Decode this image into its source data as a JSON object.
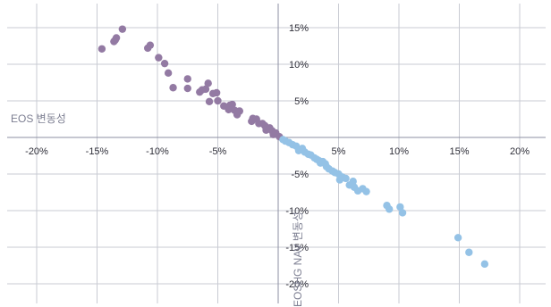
{
  "chart_data": {
    "type": "scatter",
    "xlabel": "EOS 변동성",
    "ylabel": "EOSHG NAV 변동성",
    "xlim": [
      -22,
      22
    ],
    "ylim": [
      -22,
      17.5
    ],
    "x_ticks": [
      -20,
      -15,
      -10,
      -5,
      5,
      10,
      15,
      20
    ],
    "x_tick_labels": [
      "-20%",
      "-15%",
      "-10%",
      "-5%",
      "5%",
      "10%",
      "15%",
      "20%"
    ],
    "y_ticks": [
      15,
      10,
      5,
      -5,
      -10,
      -15,
      -20
    ],
    "y_tick_labels": [
      "15%",
      "10%",
      "5%",
      "-5%",
      "-10%",
      "-15%",
      "-20%"
    ],
    "grid": true,
    "colors": {
      "negative": "#937aa3",
      "positive": "#94c2e6",
      "axis": "#8d8fa3",
      "grid": "#c9cbd3"
    },
    "series": [
      {
        "color": "negative",
        "points": [
          [
            -14.6,
            12.1
          ],
          [
            -13.6,
            13.1
          ],
          [
            -13.5,
            13.3
          ],
          [
            -13.4,
            13.6
          ],
          [
            -12.9,
            14.8
          ],
          [
            -10.8,
            12.2
          ],
          [
            -10.6,
            12.6
          ],
          [
            -9.9,
            10.9
          ],
          [
            -9.4,
            10.1
          ],
          [
            -9.1,
            8.8
          ],
          [
            -8.7,
            6.8
          ],
          [
            -7.5,
            8.0
          ],
          [
            -7.5,
            6.7
          ],
          [
            -6.5,
            6.2
          ],
          [
            -6.3,
            6.5
          ],
          [
            -6.0,
            6.6
          ],
          [
            -5.8,
            7.4
          ],
          [
            -5.7,
            4.9
          ],
          [
            -5.4,
            6.0
          ],
          [
            -5.1,
            6.1
          ],
          [
            -5.0,
            5.0
          ],
          [
            -4.5,
            4.3
          ],
          [
            -4.1,
            3.8
          ],
          [
            -4.0,
            4.4
          ],
          [
            -3.8,
            4.5
          ],
          [
            -3.6,
            3.7
          ],
          [
            -3.4,
            3.1
          ],
          [
            -3.2,
            3.6
          ],
          [
            -2.2,
            2.2
          ],
          [
            -2.1,
            2.6
          ],
          [
            -1.8,
            2.5
          ],
          [
            -1.6,
            1.9
          ],
          [
            -1.3,
            1.9
          ],
          [
            -1.1,
            1.6
          ],
          [
            -1.0,
            1.0
          ],
          [
            -0.7,
            1.3
          ],
          [
            -0.5,
            0.9
          ],
          [
            -0.4,
            0.4
          ],
          [
            -0.2,
            0.6
          ],
          [
            0.1,
            0.1
          ]
        ]
      },
      {
        "color": "positive",
        "points": [
          [
            0.4,
            -0.3
          ],
          [
            0.6,
            -0.5
          ],
          [
            0.9,
            -0.7
          ],
          [
            1.2,
            -1.0
          ],
          [
            1.5,
            -1.2
          ],
          [
            1.7,
            -1.8
          ],
          [
            2.0,
            -1.5
          ],
          [
            2.2,
            -2.0
          ],
          [
            2.5,
            -2.3
          ],
          [
            2.7,
            -2.4
          ],
          [
            3.0,
            -2.8
          ],
          [
            3.2,
            -3.0
          ],
          [
            3.4,
            -3.2
          ],
          [
            3.5,
            -3.5
          ],
          [
            3.7,
            -3.3
          ],
          [
            3.9,
            -3.6
          ],
          [
            4.0,
            -4.0
          ],
          [
            4.2,
            -4.3
          ],
          [
            4.5,
            -4.6
          ],
          [
            4.7,
            -4.8
          ],
          [
            5.0,
            -5.0
          ],
          [
            5.1,
            -5.8
          ],
          [
            5.3,
            -5.4
          ],
          [
            5.6,
            -5.6
          ],
          [
            5.9,
            -6.5
          ],
          [
            6.2,
            -6.0
          ],
          [
            6.3,
            -6.8
          ],
          [
            6.6,
            -7.3
          ],
          [
            7.0,
            -7.0
          ],
          [
            7.3,
            -7.4
          ],
          [
            9.0,
            -9.3
          ],
          [
            9.2,
            -9.8
          ],
          [
            10.1,
            -9.5
          ],
          [
            10.3,
            -10.3
          ],
          [
            14.9,
            -13.7
          ],
          [
            15.8,
            -15.7
          ],
          [
            17.1,
            -17.3
          ]
        ]
      }
    ]
  }
}
